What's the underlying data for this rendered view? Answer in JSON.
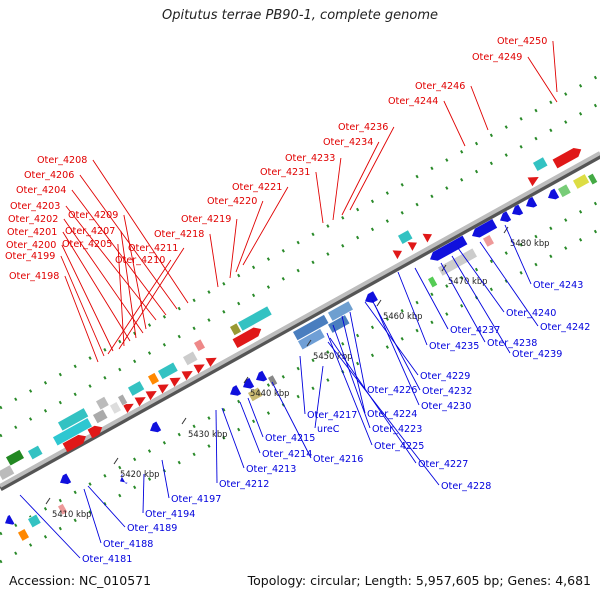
{
  "title": "Opitutus terrae PB90-1, complete genome",
  "footer": {
    "accession": "Accession: NC_010571",
    "stats": "Topology: circular; Length: 5,957,605 bp; Genes: 4,681"
  },
  "colors": {
    "forward_label": "#e00000",
    "reverse_label": "#0000dd",
    "backbone": "#8a8a8a",
    "tick": "#2a8a2a"
  },
  "kbp_ticks": [
    "5410 kbp",
    "5420 kbp",
    "5430 kbp",
    "5440 kbp",
    "5450 kbp",
    "5460 kbp",
    "5470 kbp",
    "5480 kbp"
  ],
  "labels_top": [
    "Oter_4250",
    "Oter_4249",
    "Oter_4246",
    "Oter_4244",
    "Oter_4236",
    "Oter_4234",
    "Oter_4233",
    "Oter_4231",
    "Oter_4221",
    "Oter_4220",
    "Oter_4219",
    "Oter_4218",
    "Oter_4208",
    "Oter_4206",
    "Oter_4204",
    "Oter_4203",
    "Oter_4209",
    "Oter_4202",
    "Oter_4207",
    "Oter_4201",
    "Oter_4205",
    "Oter_4211",
    "Oter_4200",
    "Oter_4210",
    "Oter_4199",
    "Oter_4198"
  ],
  "labels_bottom": [
    "Oter_4243",
    "Oter_4240",
    "Oter_4242",
    "Oter_4237",
    "Oter_4238",
    "Oter_4235",
    "Oter_4239",
    "Oter_4229",
    "Oter_4232",
    "Oter_4226",
    "Oter_4230",
    "Oter_4217",
    "Oter_4224",
    "ureC",
    "Oter_4223",
    "Oter_4215",
    "Oter_4225",
    "Oter_4214",
    "Oter_4216",
    "Oter_4227",
    "Oter_4213",
    "Oter_4228",
    "Oter_4212",
    "Oter_4197",
    "Oter_4194",
    "Oter_4189",
    "Oter_4188",
    "Oter_4181"
  ]
}
